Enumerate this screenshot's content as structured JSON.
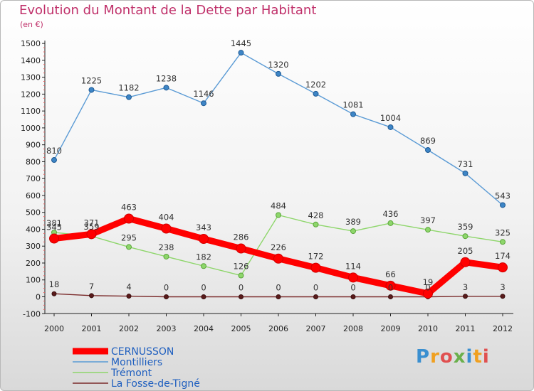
{
  "title": "Evolution du Montant de la Dette par Habitant",
  "subtitle": "(en €)",
  "logo": "Proxiti",
  "chart_data": {
    "type": "line",
    "title": "Evolution du Montant de la Dette par Habitant",
    "subtitle": "(en €)",
    "x": [
      "2000",
      "2001",
      "2002",
      "2003",
      "2004",
      "2005",
      "2006",
      "2007",
      "2008",
      "2009",
      "2010",
      "2011",
      "2012"
    ],
    "ylim": [
      -100,
      1500
    ],
    "yticks": [
      -100,
      0,
      100,
      200,
      300,
      400,
      500,
      600,
      700,
      800,
      900,
      1000,
      1100,
      1200,
      1300,
      1400,
      1500
    ],
    "grid": false,
    "legend_position": "bottom-left",
    "series": [
      {
        "name": "Montilliers",
        "color": "#5b9bd5",
        "values": [
          810,
          1225,
          1182,
          1238,
          1146,
          1445,
          1320,
          1202,
          1081,
          1004,
          869,
          731,
          543
        ]
      },
      {
        "name": "Trémont",
        "color": "#8ed66b",
        "values": [
          381,
          359,
          295,
          238,
          182,
          126,
          484,
          428,
          389,
          436,
          397,
          359,
          325
        ]
      },
      {
        "name": "La Fosse-de-Tigné",
        "color": "#7a2a2a",
        "values": [
          18,
          7,
          4,
          0,
          0,
          0,
          0,
          0,
          0,
          0,
          0,
          3,
          3
        ]
      },
      {
        "name": "CERNUSSON",
        "color": "#ff0000",
        "values": [
          345,
          371,
          463,
          404,
          343,
          286,
          226,
          172,
          114,
          66,
          19,
          205,
          174
        ]
      }
    ],
    "legend": [
      {
        "name": "CERNUSSON",
        "color": "#ff0000",
        "text_color": "#1f5fbf"
      },
      {
        "name": "Montilliers",
        "color": "#5b9bd5",
        "text_color": "#1f5fbf"
      },
      {
        "name": "Trémont",
        "color": "#8ed66b",
        "text_color": "#1f5fbf"
      },
      {
        "name": "La Fosse-de-Tigné",
        "color": "#7a2a2a",
        "text_color": "#1f5fbf"
      }
    ]
  }
}
